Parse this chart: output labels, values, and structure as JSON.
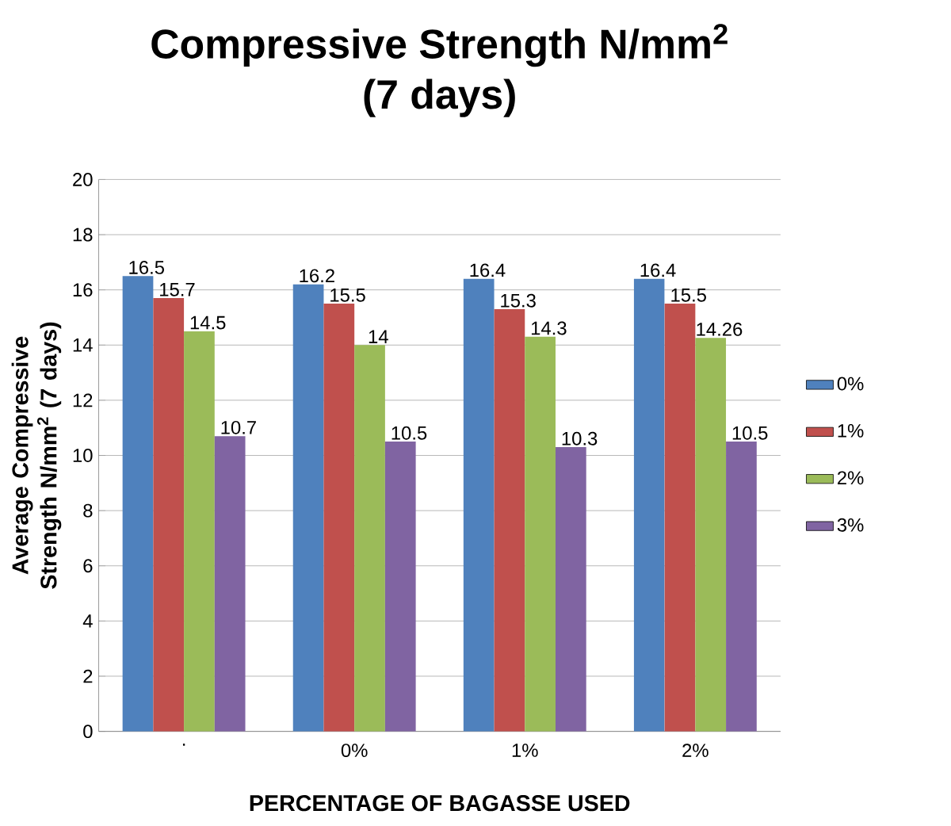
{
  "chart_data": {
    "type": "bar",
    "title": "Compressive Strength N/mm$^{2}$",
    "subtitle": "(7 days)",
    "xlabel": "PERCENTAGE OF BAGASSE USED",
    "ylabel": "Average Compressive Strength N/mm$^{2}$ (7 days)",
    "categories": [
      ".",
      "0%",
      "1%",
      "2%"
    ],
    "series": [
      {
        "name": "0%",
        "color": "#4f81bd",
        "values": [
          16.5,
          16.2,
          16.4,
          16.4
        ]
      },
      {
        "name": "1%",
        "color": "#c0504d",
        "values": [
          15.7,
          15.5,
          15.3,
          15.5
        ]
      },
      {
        "name": "2%",
        "color": "#9bbb59",
        "values": [
          14.5,
          14,
          14.3,
          14.26
        ]
      },
      {
        "name": "3%",
        "color": "#8064a2",
        "values": [
          10.7,
          10.5,
          10.3,
          10.5
        ]
      }
    ],
    "ylim": [
      0,
      20
    ],
    "yticks": [
      0,
      2,
      4,
      6,
      8,
      10,
      12,
      14,
      16,
      18,
      20
    ],
    "grid": "y",
    "legend": "right",
    "data_labels": true
  }
}
